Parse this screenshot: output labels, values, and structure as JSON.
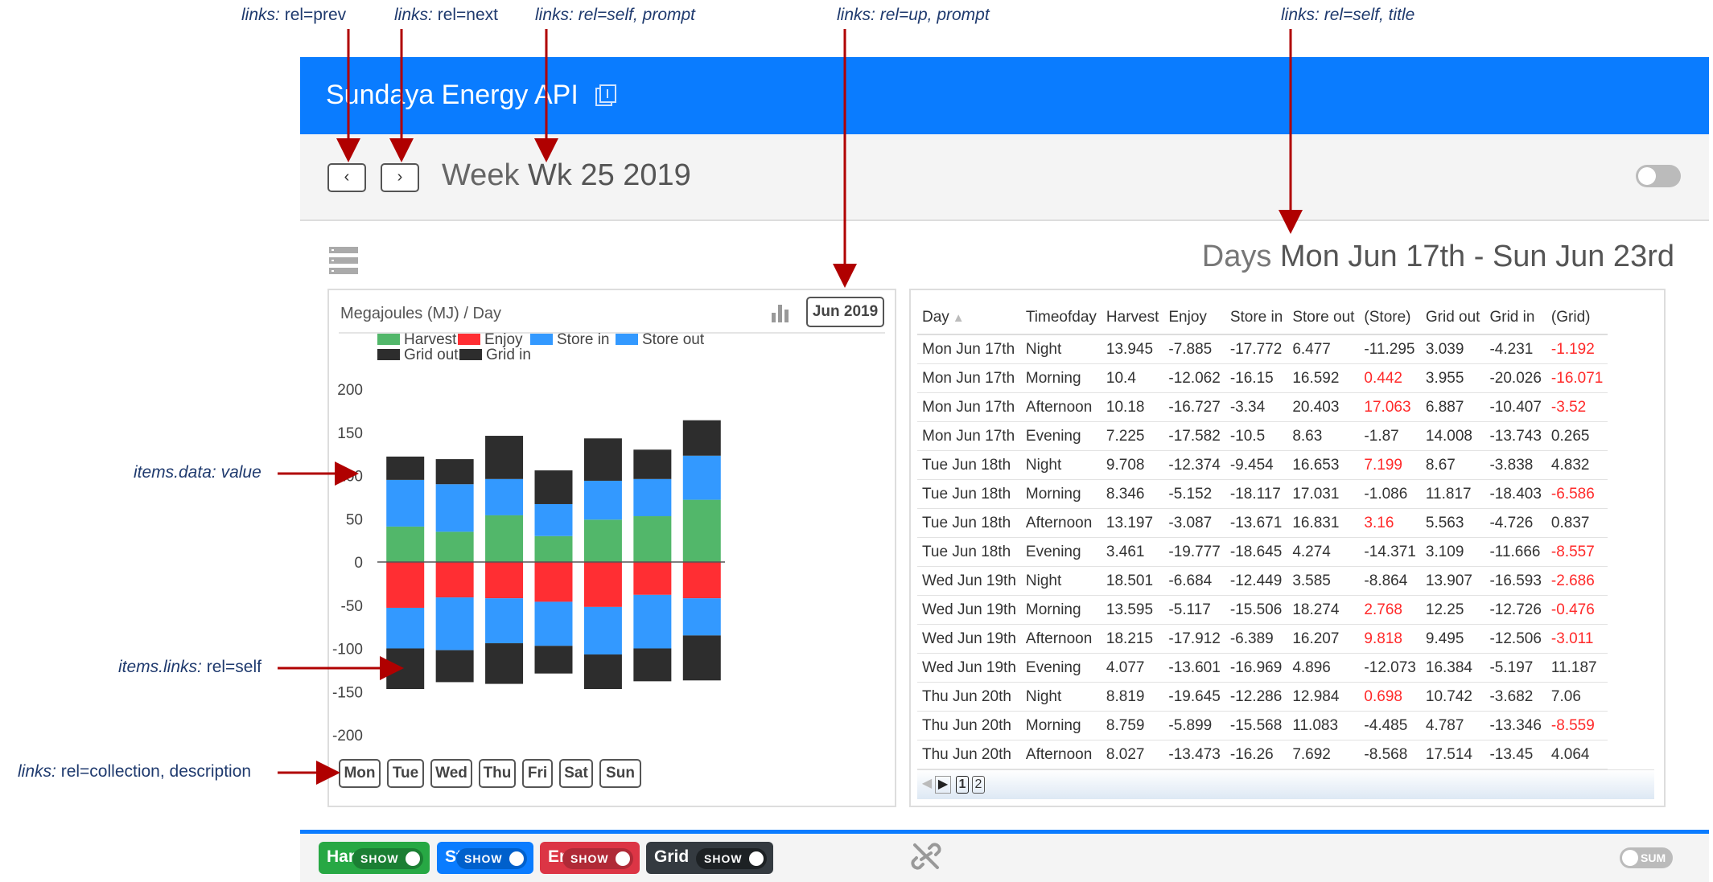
{
  "annotations": {
    "prev": {
      "key": "links:",
      "value": "rel=prev"
    },
    "next": {
      "key": "links:",
      "value": "rel=next"
    },
    "self_prompt": {
      "key": "links:",
      "value": "rel=self, prompt"
    },
    "up_prompt": {
      "key": "links:",
      "value": "rel=up, prompt"
    },
    "self_title": {
      "key": "links:",
      "value": "rel=self, title"
    },
    "items_data": {
      "key": "items.data:",
      "value": "value"
    },
    "items_links": {
      "key": "items.links:",
      "value": "rel=self"
    },
    "collection": {
      "key": "links:",
      "value": "rel=collection, description"
    }
  },
  "header": {
    "title": "Sundaya Energy API",
    "icon": "document-icon"
  },
  "nav": {
    "prev_label": "‹",
    "next_label": "›",
    "week_prefix": "Week",
    "week_value": "Wk 25 2019"
  },
  "days_header": {
    "prefix": "Days",
    "value": "Mon Jun 17th - Sun Jun 23rd"
  },
  "chart_panel": {
    "unit_label": "Megajoules (MJ) / Day",
    "month_button": "Jun 2019",
    "day_buttons": [
      "Mon",
      "Tue",
      "Wed",
      "Thu",
      "Fri",
      "Sat",
      "Sun"
    ]
  },
  "chart_data": {
    "type": "bar",
    "stacked": true,
    "categories": [
      "Mon",
      "Tue",
      "Wed",
      "Thu",
      "Fri",
      "Sat",
      "Sun"
    ],
    "ylim": [
      -200,
      200
    ],
    "yticks": [
      "200",
      "150",
      "100",
      "50",
      "0",
      "-50",
      "-100",
      "-150",
      "-200"
    ],
    "legend_placement": "top",
    "series": [
      {
        "name": "Harvest",
        "color": "#52b76a",
        "values": [
          41,
          35,
          54,
          30,
          49,
          53,
          72
        ]
      },
      {
        "name": "Enjoy",
        "color": "#ff2e33",
        "values": [
          -53,
          -41,
          -42,
          -46,
          -52,
          -38,
          -42
        ]
      },
      {
        "name": "Store in",
        "color": "#3399ff",
        "values": [
          -47,
          -61,
          -52,
          -51,
          -55,
          -62,
          -43
        ]
      },
      {
        "name": "Store out",
        "color": "#3399ff",
        "values": [
          54,
          55,
          42,
          37,
          45,
          43,
          51
        ]
      },
      {
        "name": "Grid out",
        "color": "#2d2d2d",
        "values": [
          27,
          29,
          50,
          39,
          49,
          34,
          41
        ]
      },
      {
        "name": "Grid in",
        "color": "#2d2d2d",
        "values": [
          -47,
          -37,
          -47,
          -32,
          -40,
          -38,
          -52
        ]
      }
    ]
  },
  "table": {
    "columns": [
      "Day",
      "Timeofday",
      "Harvest",
      "Enjoy",
      "Store in",
      "Store out",
      "(Store)",
      "Grid out",
      "Grid in",
      "(Grid)"
    ],
    "sort_indicator": "▲",
    "rows": [
      [
        "Mon Jun 17th",
        "Night",
        "13.945",
        "-7.885",
        "-17.772",
        "6.477",
        "-11.295",
        "3.039",
        "-4.231",
        "-1.192"
      ],
      [
        "Mon Jun 17th",
        "Morning",
        "10.4",
        "-12.062",
        "-16.15",
        "16.592",
        "0.442",
        "3.955",
        "-20.026",
        "-16.071"
      ],
      [
        "Mon Jun 17th",
        "Afternoon",
        "10.18",
        "-16.727",
        "-3.34",
        "20.403",
        "17.063",
        "6.887",
        "-10.407",
        "-3.52"
      ],
      [
        "Mon Jun 17th",
        "Evening",
        "7.225",
        "-17.582",
        "-10.5",
        "8.63",
        "-1.87",
        "14.008",
        "-13.743",
        "0.265"
      ],
      [
        "Tue Jun 18th",
        "Night",
        "9.708",
        "-12.374",
        "-9.454",
        "16.653",
        "7.199",
        "8.67",
        "-3.838",
        "4.832"
      ],
      [
        "Tue Jun 18th",
        "Morning",
        "8.346",
        "-5.152",
        "-18.117",
        "17.031",
        "-1.086",
        "11.817",
        "-18.403",
        "-6.586"
      ],
      [
        "Tue Jun 18th",
        "Afternoon",
        "13.197",
        "-3.087",
        "-13.671",
        "16.831",
        "3.16",
        "5.563",
        "-4.726",
        "0.837"
      ],
      [
        "Tue Jun 18th",
        "Evening",
        "3.461",
        "-19.777",
        "-18.645",
        "4.274",
        "-14.371",
        "3.109",
        "-11.666",
        "-8.557"
      ],
      [
        "Wed Jun 19th",
        "Night",
        "18.501",
        "-6.684",
        "-12.449",
        "3.585",
        "-8.864",
        "13.907",
        "-16.593",
        "-2.686"
      ],
      [
        "Wed Jun 19th",
        "Morning",
        "13.595",
        "-5.117",
        "-15.506",
        "18.274",
        "2.768",
        "12.25",
        "-12.726",
        "-0.476"
      ],
      [
        "Wed Jun 19th",
        "Afternoon",
        "18.215",
        "-17.912",
        "-6.389",
        "16.207",
        "9.818",
        "9.495",
        "-12.506",
        "-3.011"
      ],
      [
        "Wed Jun 19th",
        "Evening",
        "4.077",
        "-13.601",
        "-16.969",
        "4.896",
        "-12.073",
        "16.384",
        "-5.197",
        "11.187"
      ],
      [
        "Thu Jun 20th",
        "Night",
        "8.819",
        "-19.645",
        "-12.286",
        "12.984",
        "0.698",
        "10.742",
        "-3.682",
        "7.06"
      ],
      [
        "Thu Jun 20th",
        "Morning",
        "8.759",
        "-5.899",
        "-15.568",
        "11.083",
        "-4.485",
        "4.787",
        "-13.346",
        "-8.559"
      ],
      [
        "Thu Jun 20th",
        "Afternoon",
        "8.027",
        "-13.473",
        "-16.26",
        "7.692",
        "-8.568",
        "17.514",
        "-13.45",
        "4.064"
      ]
    ],
    "red_cells": [
      [
        0,
        9
      ],
      [
        1,
        6
      ],
      [
        1,
        9
      ],
      [
        2,
        6
      ],
      [
        2,
        9
      ],
      [
        4,
        6
      ],
      [
        5,
        9
      ],
      [
        6,
        6
      ],
      [
        7,
        9
      ],
      [
        8,
        9
      ],
      [
        9,
        6
      ],
      [
        9,
        9
      ],
      [
        10,
        6
      ],
      [
        10,
        9
      ],
      [
        12,
        6
      ],
      [
        13,
        9
      ]
    ],
    "pager": {
      "pages": [
        "1",
        "2"
      ]
    }
  },
  "bottom": {
    "chips": [
      {
        "label": "Harvest",
        "toggle": "SHOW",
        "color": "#27a844",
        "dark": "#1b7f33"
      },
      {
        "label": "Store",
        "toggle": "SHOW",
        "color": "#0a7cff",
        "dark": "#0060cc"
      },
      {
        "label": "Enjoy",
        "toggle": "SHOW",
        "color": "#dc3545",
        "dark": "#b02a37"
      },
      {
        "label": "Grid",
        "toggle": "SHOW",
        "color": "#343a40",
        "dark": "#1d2124"
      }
    ],
    "sum_label": "SUM"
  }
}
